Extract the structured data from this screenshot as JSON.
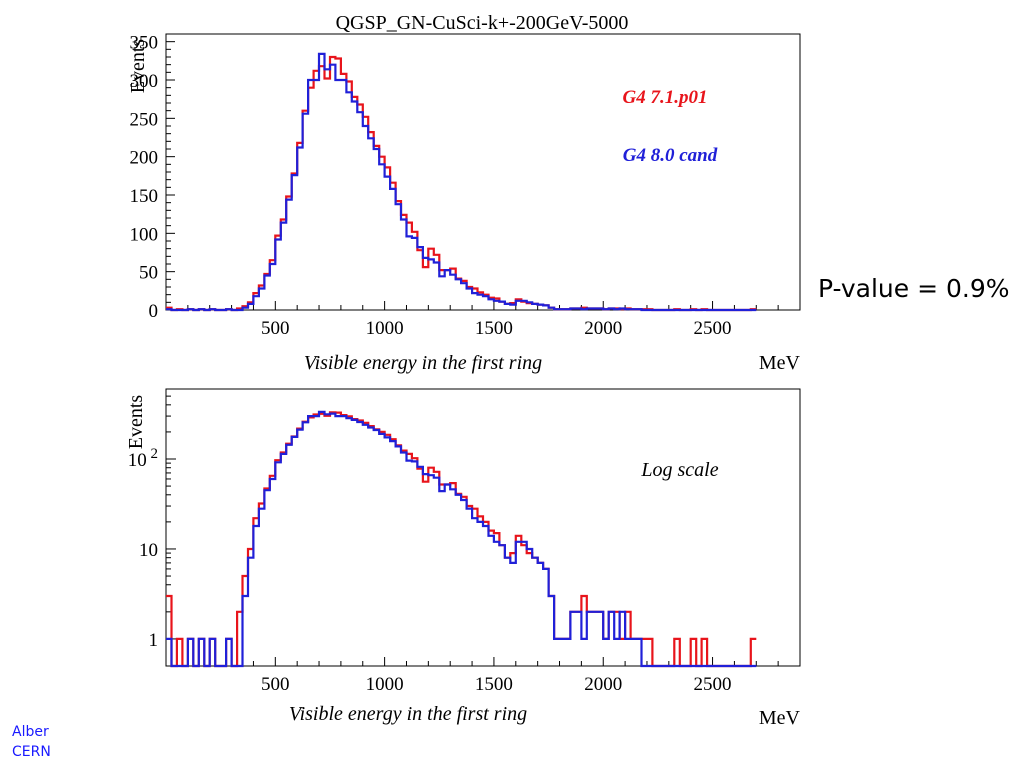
{
  "page": {
    "pvalue_text": "P-value = 0.9%",
    "footer_lines": [
      "Alber",
      "CERN"
    ]
  },
  "colors": {
    "series_a": "#e8141b",
    "series_b": "#2020d8",
    "frame": "#000000",
    "grid": "#d8d8d8",
    "footer": "#1a1aff"
  },
  "chart_data": [
    {
      "type": "histogram",
      "title": "QGSP_GN-CuSci-k+-200GeV-5000",
      "xlabel": "Visible energy in the first ring",
      "x_unit": "MeV",
      "ylabel": "Events",
      "y_scale": "linear",
      "xlim": [
        0,
        2900
      ],
      "ylim": [
        0,
        360
      ],
      "x_ticks": [
        500,
        1000,
        1500,
        2000,
        2500
      ],
      "y_ticks": [
        0,
        50,
        100,
        150,
        200,
        250,
        300,
        350
      ],
      "grid": false,
      "bin_width": 25,
      "annotations": [
        "G4 7.1.p01",
        "G4 8.0 cand"
      ],
      "series": [
        {
          "name": "G4 7.1.p01",
          "color": "#e8141b",
          "values": [
            3,
            0,
            1,
            0,
            1,
            0,
            1,
            0,
            1,
            0,
            0,
            1,
            0,
            2,
            5,
            10,
            22,
            32,
            47,
            65,
            97,
            118,
            148,
            178,
            218,
            260,
            290,
            312,
            318,
            302,
            330,
            328,
            308,
            298,
            278,
            268,
            252,
            232,
            214,
            200,
            186,
            166,
            142,
            124,
            114,
            102,
            78,
            56,
            80,
            72,
            52,
            52,
            54,
            41,
            38,
            30,
            28,
            23,
            20,
            16,
            15,
            11,
            8,
            9,
            14,
            11,
            9,
            8,
            7,
            6,
            3,
            1,
            1,
            1,
            2,
            2,
            3,
            2,
            2,
            2,
            1,
            2,
            2,
            1,
            2,
            1,
            1,
            1,
            1,
            0,
            0,
            0,
            0,
            1,
            0,
            0,
            1,
            0,
            1,
            0,
            0,
            0,
            0,
            0,
            0,
            0,
            0,
            1
          ]
        },
        {
          "name": "G4 8.0 cand",
          "color": "#2020d8",
          "values": [
            1,
            0,
            0,
            0,
            1,
            0,
            1,
            0,
            1,
            0,
            0,
            1,
            0,
            0,
            3,
            8,
            18,
            28,
            45,
            60,
            92,
            114,
            144,
            176,
            212,
            256,
            300,
            300,
            334,
            314,
            320,
            300,
            300,
            284,
            272,
            258,
            240,
            224,
            210,
            190,
            174,
            158,
            138,
            118,
            96,
            94,
            82,
            68,
            66,
            62,
            44,
            52,
            46,
            40,
            35,
            28,
            22,
            20,
            18,
            14,
            12,
            11,
            8,
            7,
            12,
            12,
            10,
            8,
            7,
            6,
            3,
            1,
            1,
            1,
            2,
            2,
            1,
            2,
            2,
            2,
            1,
            2,
            1,
            2,
            1,
            1,
            1,
            0,
            0,
            0,
            0,
            0,
            0,
            0,
            0,
            0,
            0,
            0,
            0,
            0,
            0,
            0,
            0,
            0,
            0,
            0,
            0,
            0
          ]
        }
      ]
    },
    {
      "type": "histogram",
      "title": "",
      "xlabel": "Visible energy in the first ring",
      "x_unit": "MeV",
      "ylabel": "Events",
      "y_scale": "log",
      "xlim": [
        0,
        2900
      ],
      "ylim": [
        0.5,
        600
      ],
      "x_ticks": [
        500,
        1000,
        1500,
        2000,
        2500
      ],
      "y_ticks": [
        1,
        10,
        100
      ],
      "y_tick_labels": [
        "1",
        "10",
        "10 2"
      ],
      "grid": false,
      "bin_width": 25,
      "annotations": [
        "Log scale"
      ],
      "series_ref": "same data as top panel"
    }
  ]
}
